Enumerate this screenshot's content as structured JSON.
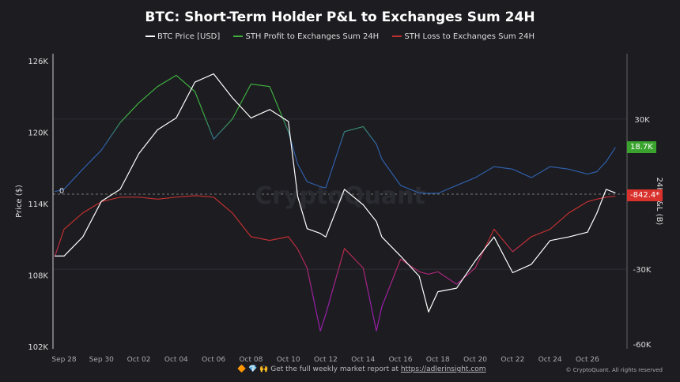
{
  "chart_data": {
    "type": "line",
    "title": "BTC: Short-Term Holder P&L to Exchanges Sum 24H",
    "ylabel": "Price ($)",
    "y2label": "24H P&L (B)",
    "ylim": [
      102000,
      126000
    ],
    "y2lim": [
      -60000,
      30000
    ],
    "yticks": [
      "102K",
      "108K",
      "114K",
      "120K",
      "126K"
    ],
    "y2ticks": [
      "30K",
      "0",
      "-30K",
      "-60K"
    ],
    "xticks": [
      "Sep 28",
      "Sep 30",
      "Oct 02",
      "Oct 04",
      "Oct 06",
      "Oct 08",
      "Oct 10",
      "Oct 12",
      "Oct 14",
      "Oct 16",
      "Oct 18",
      "Oct 20",
      "Oct 22",
      "Oct 24",
      "Oct 26"
    ],
    "grid": true,
    "legend": "top",
    "x": [
      "2025-09-27T12",
      "2025-09-28",
      "2025-09-29",
      "2025-09-30",
      "2025-10-01",
      "2025-10-02",
      "2025-10-03",
      "2025-10-04",
      "2025-10-05",
      "2025-10-06",
      "2025-10-07",
      "2025-10-08",
      "2025-10-09",
      "2025-10-10",
      "2025-10-10T12",
      "2025-10-11",
      "2025-10-11T17",
      "2025-10-12",
      "2025-10-13",
      "2025-10-14",
      "2025-10-14T17",
      "2025-10-15",
      "2025-10-16",
      "2025-10-17",
      "2025-10-17T12",
      "2025-10-18",
      "2025-10-19",
      "2025-10-20",
      "2025-10-21",
      "2025-10-22",
      "2025-10-23",
      "2025-10-24",
      "2025-10-25",
      "2025-10-26",
      "2025-10-26T12",
      "2025-10-27",
      "2025-10-27T12"
    ],
    "series": [
      {
        "name": "BTC Price [USD]",
        "axis": "left",
        "color": "#ffffff",
        "values": [
          109600,
          109600,
          111200,
          114200,
          115200,
          118200,
          120200,
          121200,
          124200,
          124900,
          122900,
          121200,
          121900,
          120900,
          114600,
          111900,
          111500,
          111200,
          115200,
          113900,
          112500,
          111200,
          109600,
          107900,
          104900,
          106600,
          106900,
          109200,
          111200,
          108200,
          108900,
          110900,
          111200,
          111600,
          113200,
          115200,
          114900
        ]
      },
      {
        "name": "STH Profit to Exchanges Sum 24H",
        "axis": "right",
        "color": "#3fae3f",
        "low_color": "#2f5fa8",
        "values": [
          1000,
          2000,
          10000,
          17600,
          28600,
          36500,
          43000,
          47500,
          41000,
          22000,
          30000,
          44000,
          43000,
          25000,
          12000,
          5000,
          3000,
          2500,
          25000,
          27000,
          20000,
          14000,
          3500,
          500,
          300,
          300,
          3500,
          6600,
          11000,
          10000,
          6600,
          11000,
          10000,
          8000,
          9000,
          13000,
          18700
        ]
      },
      {
        "name": "STH Loss to Exchanges Sum 24H",
        "axis": "right",
        "color": "#c0302f",
        "low_color": "#9a1fa8",
        "values": [
          -25000,
          -14000,
          -7500,
          -3000,
          -1200,
          -1200,
          -2000,
          -1200,
          -600,
          -1200,
          -7500,
          -17000,
          -18500,
          -17000,
          -22000,
          -29500,
          -54700,
          -48000,
          -21700,
          -29500,
          -54700,
          -45000,
          -26000,
          -31000,
          -32000,
          -31000,
          -36000,
          -29500,
          -14000,
          -23000,
          -17000,
          -14000,
          -7500,
          -3000,
          -2000,
          -1200,
          -842.4
        ]
      }
    ],
    "last_values": {
      "profit": "18.7K",
      "loss": "-842.4*"
    },
    "colors": {
      "profit_badge": "#3aa32e",
      "loss_badge": "#d9312b",
      "background": "#1c1c21"
    }
  },
  "watermark": "CryptoQuant",
  "footer": {
    "text": "Get the full weekly market report at ",
    "link": "https://adlerinsight.com",
    "emojis": "🔶 💎 🙌",
    "copyright": "© CryptoQuant. All rights reserved"
  }
}
